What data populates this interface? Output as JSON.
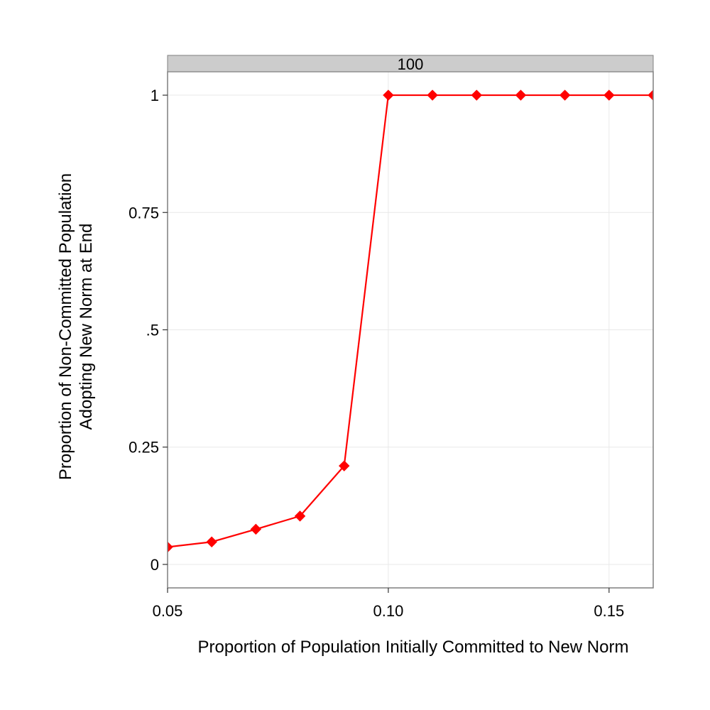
{
  "chart_data": {
    "type": "line",
    "facet_label": "100",
    "xlabel": "Proportion of Population Initially Committed to New Norm",
    "ylabel_lines": [
      "Proportion of Non-Committed Population",
      "Adopting New Norm at End"
    ],
    "xlim": [
      0.05,
      0.16
    ],
    "ylim": [
      -0.05,
      1.05
    ],
    "x_ticks": [
      {
        "value": 0.05,
        "label": "0.05"
      },
      {
        "value": 0.1,
        "label": "0.10"
      },
      {
        "value": 0.15,
        "label": "0.15"
      }
    ],
    "y_ticks": [
      {
        "value": 0,
        "label": "0"
      },
      {
        "value": 0.25,
        "label": "0.25"
      },
      {
        "value": 0.5,
        "label": ".5"
      },
      {
        "value": 0.75,
        "label": "0.75"
      },
      {
        "value": 1,
        "label": "1"
      }
    ],
    "grid": true,
    "legend": "none",
    "series": [
      {
        "color": "#ff0000",
        "marker": "diamond",
        "x": [
          0.05,
          0.06,
          0.07,
          0.08,
          0.09,
          0.1,
          0.11,
          0.12,
          0.13,
          0.14,
          0.15,
          0.16
        ],
        "y": [
          0.037,
          0.048,
          0.075,
          0.103,
          0.21,
          1,
          1,
          1,
          1,
          1,
          1,
          1
        ]
      }
    ]
  },
  "colors": {
    "strip_fill": "#cccccc",
    "grid": "#e8e8e8",
    "border": "#7f7f7f"
  }
}
